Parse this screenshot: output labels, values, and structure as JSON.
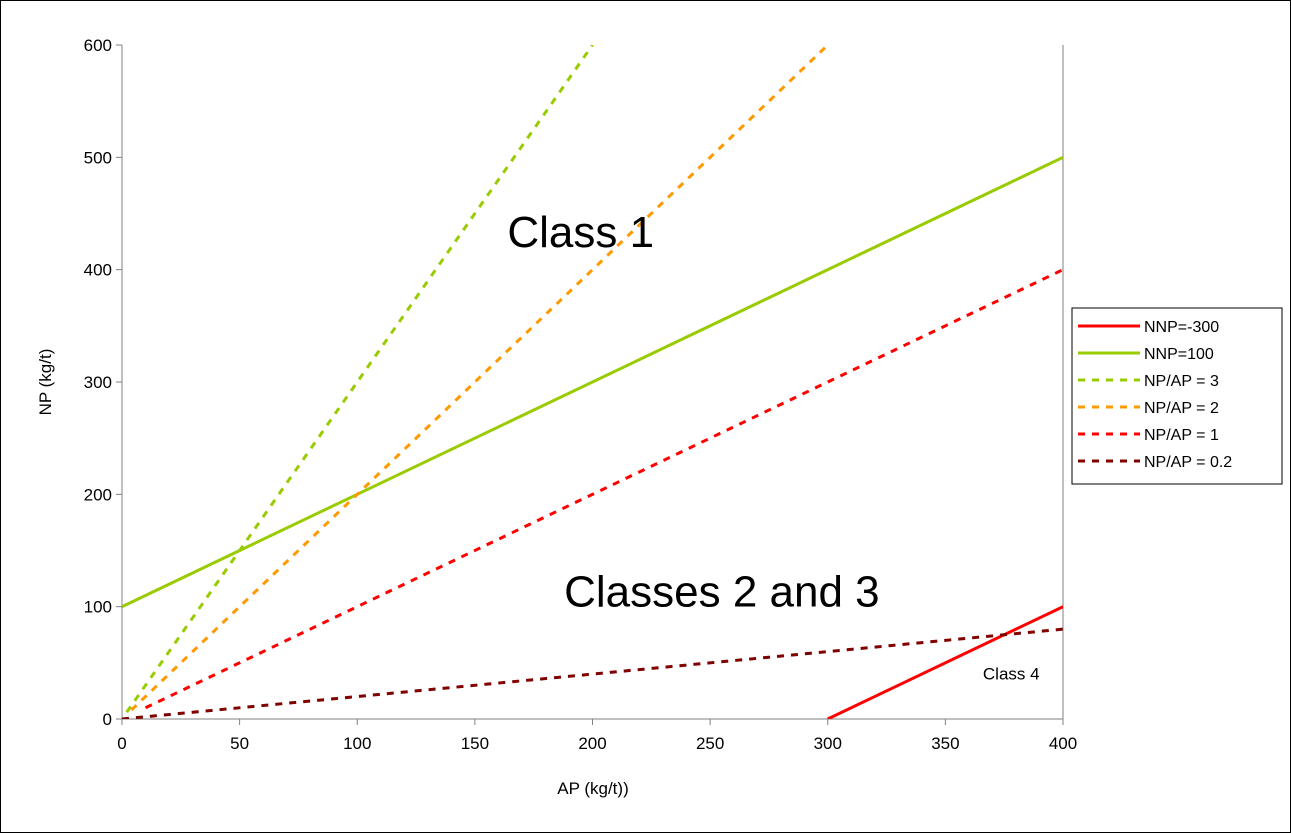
{
  "chart_data": {
    "type": "line",
    "title": "",
    "xlabel": "AP (kg/t))",
    "ylabel": "NP (kg/t)",
    "xlim": [
      0,
      400
    ],
    "ylim": [
      0,
      600
    ],
    "x_ticks": [
      0,
      50,
      100,
      150,
      200,
      250,
      300,
      350,
      400
    ],
    "y_ticks": [
      0,
      100,
      200,
      300,
      400,
      500,
      600
    ],
    "grid": false,
    "legend_position": "right",
    "series": [
      {
        "name": "NNP=-300",
        "color": "#ff0000",
        "style": "solid",
        "x": [
          300,
          400
        ],
        "y": [
          0,
          100
        ]
      },
      {
        "name": "NNP=100",
        "color": "#99cc00",
        "style": "solid",
        "x": [
          0,
          400
        ],
        "y": [
          100,
          500
        ]
      },
      {
        "name": "NP/AP = 3",
        "color": "#99cc00",
        "style": "dashed",
        "x": [
          2,
          200
        ],
        "y": [
          6,
          600
        ]
      },
      {
        "name": "NP/AP = 2",
        "color": "#ff9900",
        "style": "dashed",
        "x": [
          4,
          300
        ],
        "y": [
          8,
          600
        ]
      },
      {
        "name": "NP/AP = 1",
        "color": "#ff0000",
        "style": "dashed",
        "x": [
          10,
          400
        ],
        "y": [
          10,
          400
        ]
      },
      {
        "name": "NP/AP = 0.2",
        "color": "#800000",
        "style": "dashed",
        "x": [
          0,
          400
        ],
        "y": [
          0,
          80
        ]
      }
    ],
    "annotations": [
      {
        "text": "Class 1",
        "x": 195,
        "y": 420,
        "size": "large"
      },
      {
        "text": "Classes 2 and 3",
        "x": 255,
        "y": 100,
        "size": "large"
      },
      {
        "text": "Class 4",
        "x": 378,
        "y": 35,
        "size": "small"
      }
    ]
  }
}
